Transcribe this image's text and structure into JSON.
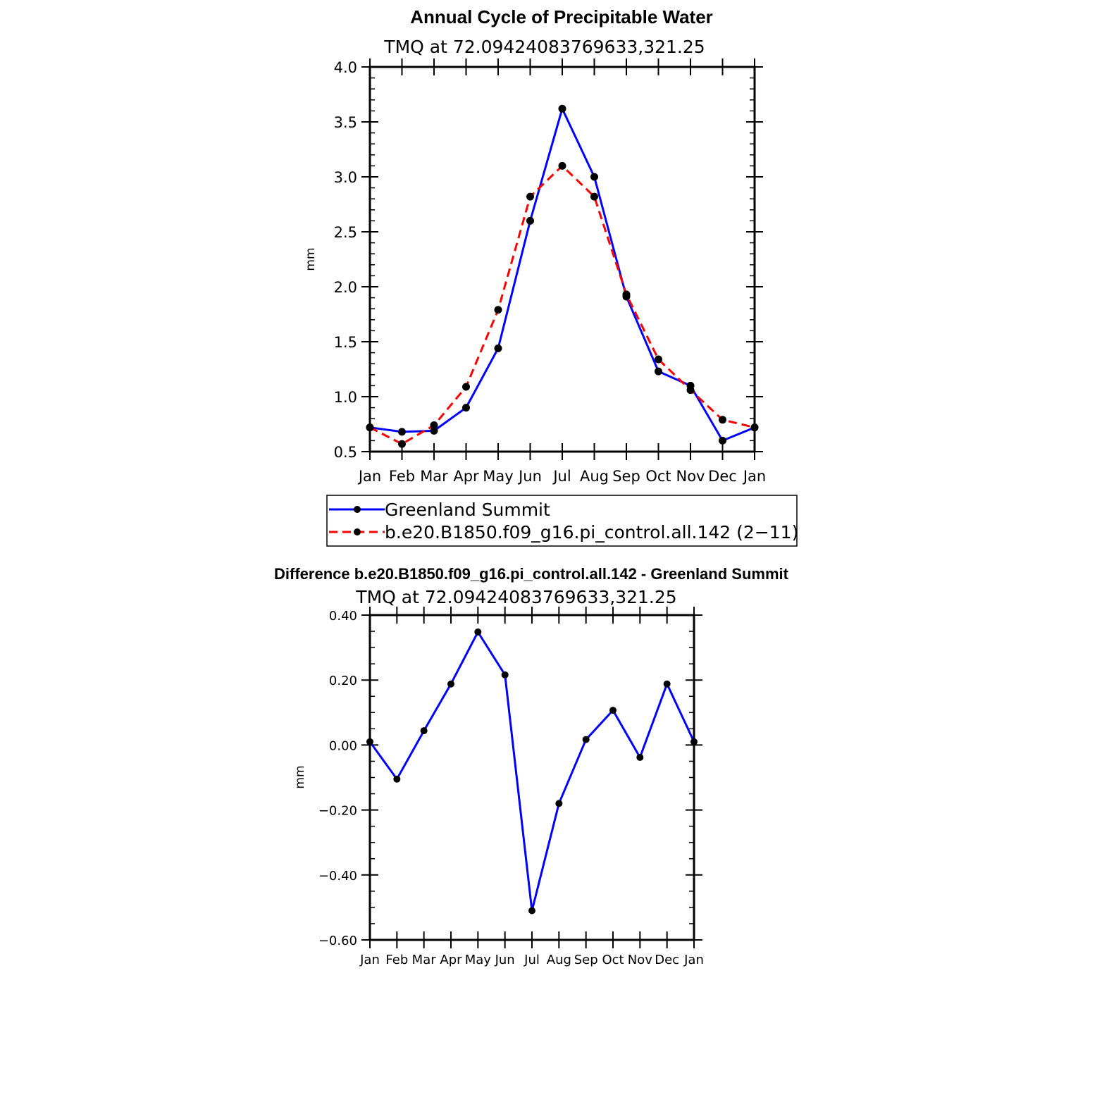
{
  "chart_data": [
    {
      "type": "line",
      "title": "Annual Cycle of Precipitable Water",
      "subtitle": "TMQ at 72.09424083769633,321.25",
      "xlabel": "",
      "ylabel": "mm",
      "x_tick_labels": [
        "Jan",
        "Feb",
        "Mar",
        "Apr",
        "May",
        "Jun",
        "Jul",
        "Aug",
        "Sep",
        "Oct",
        "Nov",
        "Dec",
        "Jan"
      ],
      "y_tick_labels": [
        "0.5",
        "1.0",
        "1.5",
        "2.0",
        "2.5",
        "3.0",
        "3.5",
        "4.0"
      ],
      "ylim": [
        0.5,
        4.0
      ],
      "grid": false,
      "legend_position": "below",
      "series": [
        {
          "name": "Greenland Summit",
          "color": "#0000ff",
          "style": "solid",
          "values": [
            0.72,
            0.68,
            0.69,
            0.9,
            1.44,
            2.6,
            3.62,
            3.0,
            1.91,
            1.23,
            1.1,
            0.6,
            0.72
          ]
        },
        {
          "name": "b.e20.B1850.f09_g16.pi_control.all.142 (2−11)",
          "color": "#ff0000",
          "style": "dashed",
          "values": [
            0.72,
            0.57,
            0.74,
            1.09,
            1.79,
            2.82,
            3.1,
            2.82,
            1.93,
            1.34,
            1.06,
            0.79,
            0.72
          ]
        }
      ]
    },
    {
      "type": "line",
      "title": "Difference b.e20.B1850.f09_g16.pi_control.all.142 - Greenland Summit",
      "subtitle": "TMQ at 72.09424083769633,321.25",
      "xlabel": "",
      "ylabel": "mm",
      "x_tick_labels": [
        "Jan",
        "Feb",
        "Mar",
        "Apr",
        "May",
        "Jun",
        "Jul",
        "Aug",
        "Sep",
        "Oct",
        "Nov",
        "Dec",
        "Jan"
      ],
      "y_tick_labels": [
        "−0.60",
        "−0.40",
        "−0.20",
        "0.00",
        "0.20",
        "0.40"
      ],
      "ylim": [
        -0.6,
        0.4
      ],
      "grid": false,
      "series": [
        {
          "color": "#0000ff",
          "style": "solid",
          "values": [
            0.01,
            -0.105,
            0.044,
            0.188,
            0.348,
            0.216,
            -0.51,
            -0.18,
            0.017,
            0.107,
            -0.038,
            0.188,
            0.01
          ]
        }
      ]
    }
  ]
}
